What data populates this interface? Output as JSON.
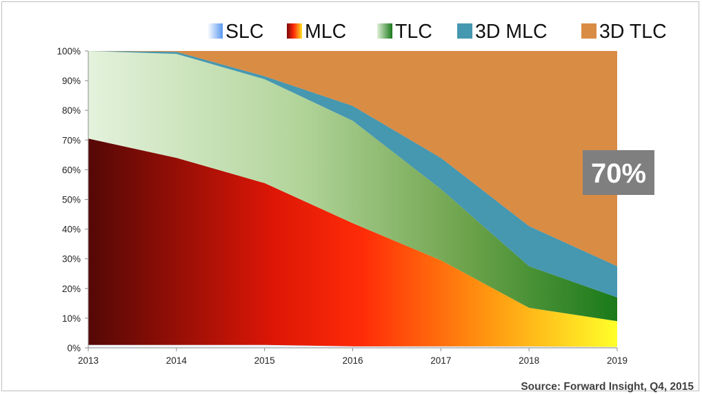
{
  "chart_data": {
    "type": "area",
    "stacked": true,
    "normalized": true,
    "x": [
      "2013",
      "2014",
      "2015",
      "2016",
      "2017",
      "2018",
      "2019"
    ],
    "yticks": [
      "0%",
      "10%",
      "20%",
      "30%",
      "40%",
      "50%",
      "60%",
      "70%",
      "80%",
      "90%",
      "100%"
    ],
    "ylim": [
      0,
      100
    ],
    "legend": "top",
    "series": [
      {
        "name": "SLC",
        "values": [
          1,
          1,
          1,
          0.5,
          0.5,
          0.5,
          0.3
        ]
      },
      {
        "name": "MLC",
        "values": [
          69.5,
          63,
          54.5,
          41.5,
          29,
          13,
          8.7
        ]
      },
      {
        "name": "TLC",
        "values": [
          29.5,
          35,
          35,
          34.5,
          24,
          14,
          8
        ]
      },
      {
        "name": "3D MLC",
        "values": [
          0,
          0.7,
          1,
          5,
          10.5,
          13.5,
          10.5
        ]
      },
      {
        "name": "3D TLC",
        "values": [
          0,
          0.3,
          8.5,
          18.5,
          36,
          59,
          72.5
        ]
      }
    ],
    "colors": {
      "SLC": "#8ab8f0",
      "MLC": "#ff2a10",
      "TLC": "#5a9a38",
      "3D MLC": "#4697b0",
      "3D TLC": "#d98c44"
    },
    "annotation": {
      "text": "70%",
      "background": "#7f7f7f",
      "color": "#ffffff"
    }
  },
  "source_text": "Source: Forward Insight, Q4, 2015"
}
